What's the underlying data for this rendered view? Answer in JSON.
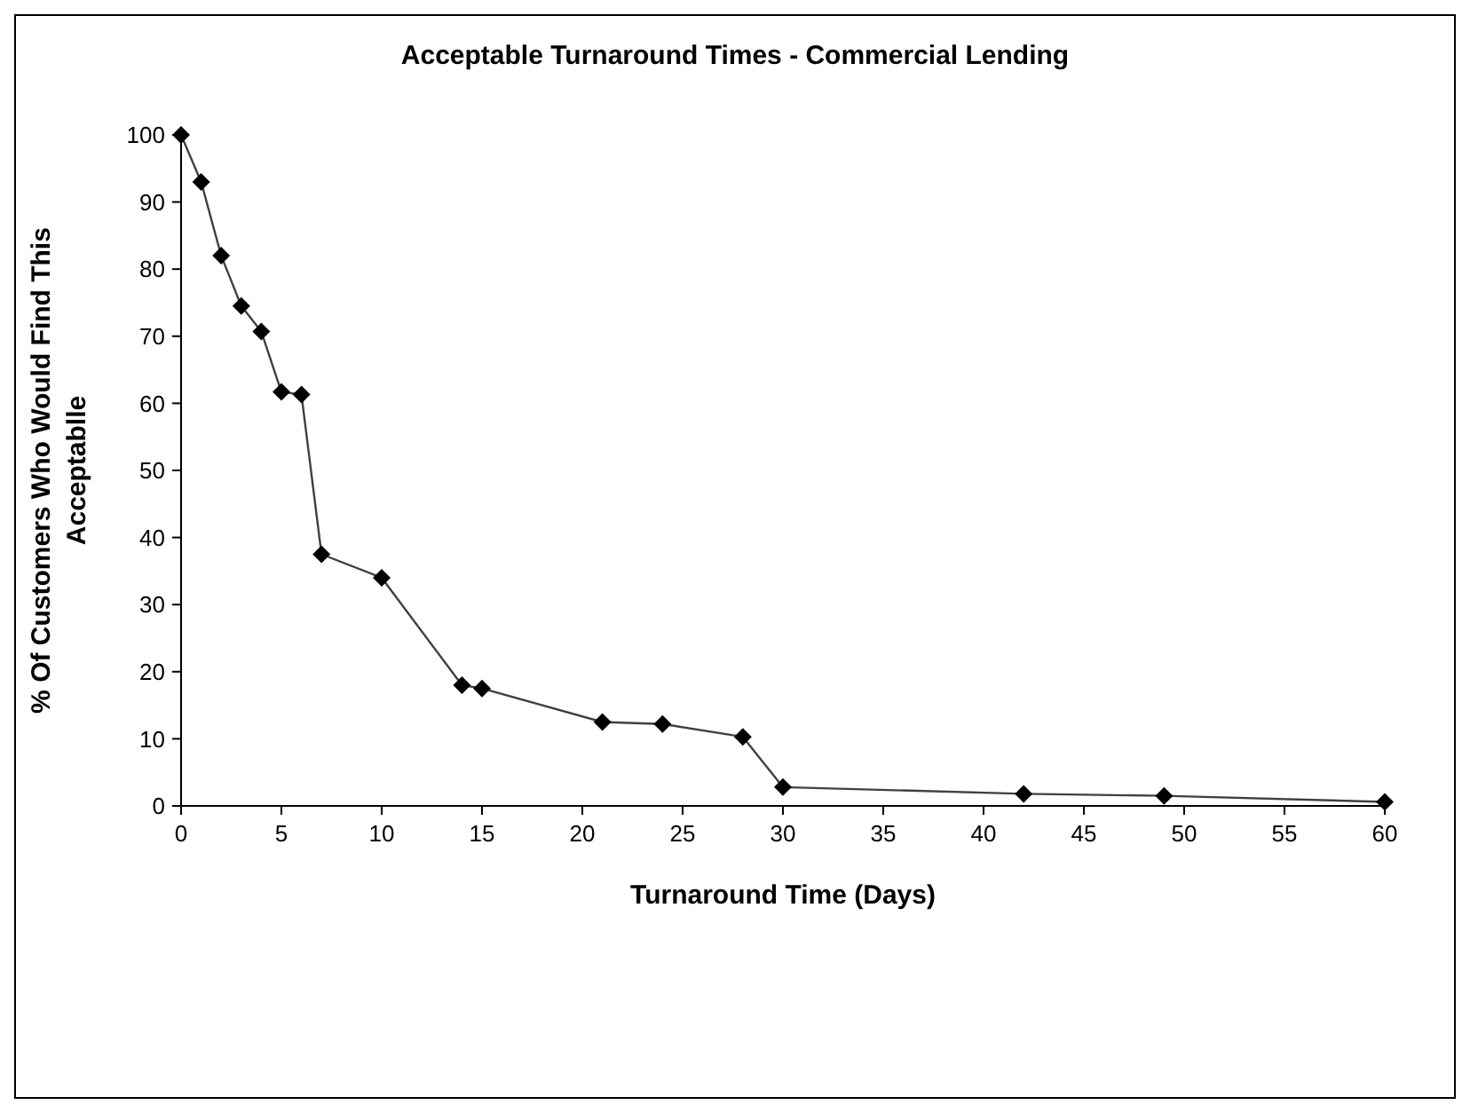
{
  "chart_data": {
    "type": "line",
    "title": "Acceptable Turnaround Times - Commercial Lending",
    "xlabel": "Turnaround Time (Days)",
    "ylabel": "% Of Customers Who Would Find This Acceptablle",
    "x": [
      0,
      1,
      2,
      3,
      4,
      5,
      6,
      7,
      10,
      14,
      15,
      21,
      24,
      28,
      30,
      42,
      49,
      60
    ],
    "series": [
      {
        "color": "#000000",
        "values": [
          100,
          93,
          82,
          74.5,
          70.7,
          61.7,
          61.3,
          37.5,
          34,
          18,
          17.5,
          12.5,
          12.2,
          10.3,
          2.8,
          1.8,
          1.5,
          0.6
        ]
      }
    ],
    "xlim": [
      0,
      60
    ],
    "xticks": [
      0,
      5,
      10,
      15,
      20,
      25,
      30,
      35,
      40,
      45,
      50,
      55,
      60
    ],
    "ylim": [
      0,
      100
    ],
    "yticks": [
      0,
      10,
      20,
      30,
      40,
      50,
      60,
      70,
      80,
      90,
      100
    ],
    "marker": "diamond",
    "line_style": "solid",
    "grid": false
  }
}
